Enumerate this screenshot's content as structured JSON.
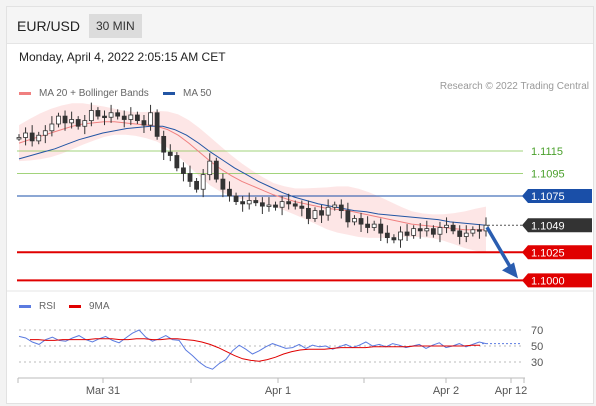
{
  "header": {
    "symbol": "EUR/USD",
    "timeframe": "30 MIN"
  },
  "datetime": "Monday, April 4, 2022 2:05:15 AM CET",
  "legend": {
    "ma20": {
      "label": "MA 20 + Bollinger Bands",
      "color": "#f08080"
    },
    "ma50": {
      "label": "MA 50",
      "color": "#2255a4"
    },
    "rsi": {
      "label": "RSI",
      "color": "#5b7be0"
    },
    "ma9": {
      "label": "9MA",
      "color": "#e00000"
    }
  },
  "credit": "Research © 2022 Trading Central",
  "chart_data": {
    "type": "candlestick",
    "price_range": [
      1.0995,
      1.1155
    ],
    "levels": [
      {
        "label": "1.1115",
        "value": 1.1115,
        "color": "#7bc043",
        "style": "line"
      },
      {
        "label": "1.1095",
        "value": 1.1095,
        "color": "#7bc043",
        "style": "line"
      },
      {
        "label": "1.1075",
        "value": 1.1075,
        "color": "#1a4fa8",
        "style": "box"
      },
      {
        "label": "1.1049",
        "value": 1.1049,
        "color": "#333333",
        "style": "box"
      },
      {
        "label": "1.1025",
        "value": 1.1025,
        "color": "#e00000",
        "style": "box"
      },
      {
        "label": "1.1000",
        "value": 1.1,
        "color": "#e00000",
        "style": "box"
      }
    ],
    "close_path": [
      1.1127,
      1.1131,
      1.1124,
      1.1129,
      1.1133,
      1.1139,
      1.1146,
      1.114,
      1.1143,
      1.1137,
      1.1142,
      1.1151,
      1.1146,
      1.1145,
      1.1149,
      1.1146,
      1.1143,
      1.1147,
      1.1142,
      1.1138,
      1.1149,
      1.1128,
      1.1114,
      1.1111,
      1.11,
      1.1095,
      1.1088,
      1.1081,
      1.1094,
      1.1106,
      1.109,
      1.1081,
      1.1075,
      1.107,
      1.1068,
      1.1071,
      1.1069,
      1.1066,
      1.1067,
      1.1065,
      1.107,
      1.1068,
      1.1066,
      1.1064,
      1.1055,
      1.1062,
      1.1058,
      1.1065,
      1.1067,
      1.1062,
      1.1052,
      1.1055,
      1.105,
      1.1047,
      1.105,
      1.1042,
      1.1038,
      1.1036,
      1.1043,
      1.104,
      1.1046,
      1.1044,
      1.1046,
      1.1041,
      1.1047,
      1.1049,
      1.1044,
      1.1039,
      1.1042,
      1.1045,
      1.1044,
      1.1049
    ],
    "ma20": [
      1.1122,
      1.1125,
      1.1128,
      1.1131,
      1.1134,
      1.1137,
      1.1139,
      1.114,
      1.1141,
      1.1141,
      1.114,
      1.1139,
      1.1138,
      1.1137,
      1.1134,
      1.1129,
      1.1122,
      1.1114,
      1.1106,
      1.1099,
      1.1093,
      1.1088,
      1.1084,
      1.108,
      1.1076,
      1.1073,
      1.107,
      1.1068,
      1.1066,
      1.1064,
      1.1063,
      1.1062,
      1.106,
      1.1058,
      1.1056,
      1.1054,
      1.1052,
      1.105,
      1.1049,
      1.1048,
      1.1047,
      1.1046,
      1.1045,
      1.1045,
      1.1045
    ],
    "ma50": [
      1.1108,
      1.1111,
      1.1114,
      1.1117,
      1.1121,
      1.1125,
      1.1128,
      1.1131,
      1.1133,
      1.1135,
      1.1136,
      1.1137,
      1.1137,
      1.1134,
      1.1129,
      1.1122,
      1.1114,
      1.1107,
      1.11,
      1.1094,
      1.1088,
      1.1083,
      1.1078,
      1.1074,
      1.1071,
      1.1068,
      1.1066,
      1.1064,
      1.1062,
      1.1061,
      1.1059,
      1.1058,
      1.1057,
      1.1056,
      1.1055,
      1.1054,
      1.1052,
      1.1051,
      1.105,
      1.1049
    ],
    "band_width": 0.0016,
    "forecast": {
      "from": 1.1049,
      "to": 1.1
    },
    "rsi": {
      "levels": [
        70,
        50,
        30
      ],
      "level_labels": [
        "70",
        "50",
        "30"
      ],
      "range": [
        15,
        85
      ],
      "rsi_values": [
        62,
        60,
        55,
        52,
        58,
        61,
        57,
        56,
        60,
        63,
        58,
        55,
        59,
        62,
        57,
        54,
        60,
        66,
        70,
        61,
        56,
        59,
        63,
        58,
        57,
        45,
        38,
        30,
        24,
        21,
        28,
        33,
        44,
        51,
        46,
        40,
        44,
        49,
        53,
        50,
        47,
        48,
        52,
        47,
        51,
        49,
        50,
        46,
        49,
        52,
        48,
        51,
        55,
        50,
        52,
        49,
        53,
        51,
        48,
        50,
        52,
        47,
        51,
        54,
        48,
        50,
        53,
        49,
        52,
        55,
        53
      ],
      "ma9_values": [
        58,
        58,
        57,
        57,
        58,
        58,
        58,
        58,
        59,
        59,
        59,
        58,
        58,
        59,
        59,
        58,
        58,
        59,
        59,
        58,
        57,
        55,
        52,
        48,
        43,
        38,
        34,
        32,
        31,
        33,
        36,
        40,
        43,
        45,
        46,
        46,
        46,
        47,
        48,
        48,
        48,
        48,
        49,
        49,
        49,
        49,
        49,
        50,
        50,
        50,
        50,
        50,
        50,
        50,
        51,
        51
      ]
    },
    "x_ticks": [
      "Mar 31",
      "Apr 1",
      "Apr 2",
      "Apr 12"
    ]
  }
}
